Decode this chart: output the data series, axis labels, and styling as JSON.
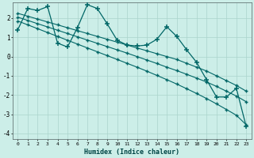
{
  "xlabel": "Humidex (Indice chaleur)",
  "bg_color": "#cceee8",
  "grid_color": "#aad4cc",
  "line_color": "#006666",
  "xlim": [
    -0.5,
    23.5
  ],
  "ylim": [
    -4.3,
    2.8
  ],
  "yticks": [
    -4,
    -3,
    -2,
    -1,
    0,
    1,
    2
  ],
  "x": [
    0,
    1,
    2,
    3,
    4,
    5,
    6,
    7,
    8,
    9,
    10,
    11,
    12,
    13,
    14,
    15,
    16,
    17,
    18,
    19,
    20,
    21,
    22,
    23
  ],
  "y_main": [
    1.4,
    2.5,
    2.4,
    2.6,
    0.7,
    0.5,
    1.5,
    2.7,
    2.5,
    1.7,
    0.85,
    0.6,
    0.55,
    0.6,
    0.9,
    1.55,
    1.05,
    0.35,
    -0.3,
    -1.2,
    -2.1,
    -2.1,
    -1.65,
    -3.65
  ],
  "y_line1": [
    2.25,
    2.1,
    1.95,
    1.8,
    1.65,
    1.5,
    1.35,
    1.2,
    1.05,
    0.9,
    0.75,
    0.6,
    0.45,
    0.3,
    0.15,
    0.0,
    -0.15,
    -0.35,
    -0.55,
    -0.75,
    -1.0,
    -1.25,
    -1.5,
    -1.8
  ],
  "y_line2": [
    2.05,
    1.88,
    1.71,
    1.54,
    1.37,
    1.2,
    1.03,
    0.86,
    0.69,
    0.52,
    0.35,
    0.18,
    0.0,
    -0.18,
    -0.36,
    -0.55,
    -0.73,
    -0.92,
    -1.12,
    -1.32,
    -1.55,
    -1.8,
    -2.05,
    -2.35
  ],
  "y_line3": [
    1.85,
    1.65,
    1.45,
    1.25,
    1.05,
    0.85,
    0.65,
    0.45,
    0.25,
    0.05,
    -0.15,
    -0.35,
    -0.55,
    -0.76,
    -0.98,
    -1.2,
    -1.43,
    -1.67,
    -1.92,
    -2.18,
    -2.46,
    -2.75,
    -3.05,
    -3.55
  ]
}
